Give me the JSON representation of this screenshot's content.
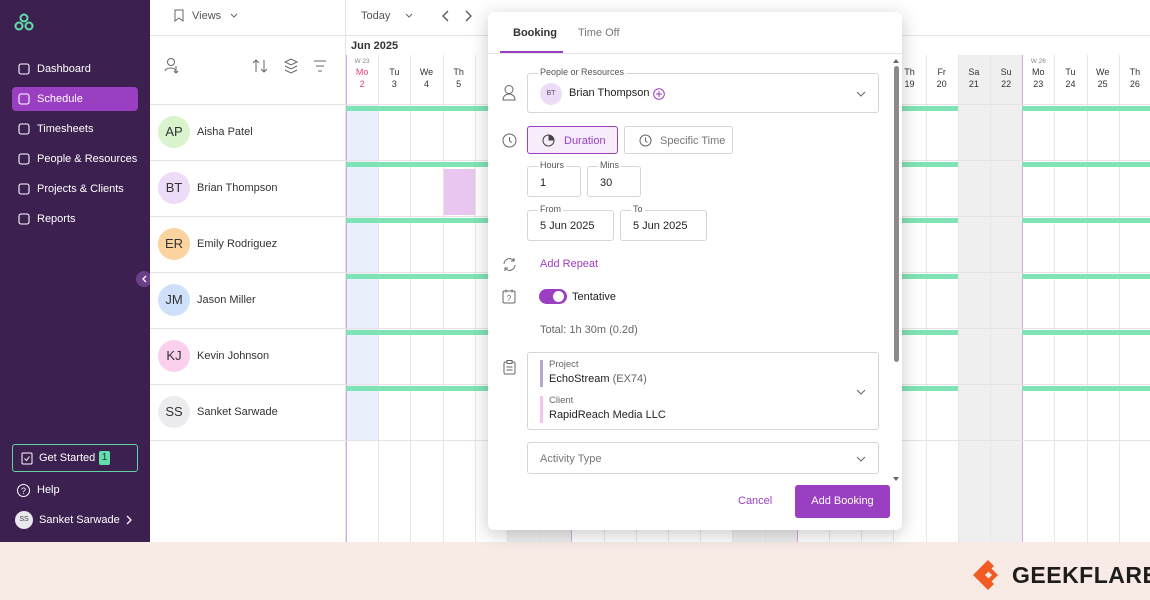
{
  "sidebar": {
    "nav": [
      "Dashboard",
      "Schedule",
      "Timesheets",
      "People & Resources",
      "Projects & Clients",
      "Reports"
    ],
    "get_started": {
      "label": "Get Started",
      "badge": "1"
    },
    "help": "Help",
    "user": {
      "initials": "SS",
      "name": "Sanket Sarwade"
    }
  },
  "toolbar": {
    "views": "Views",
    "today": "Today"
  },
  "calendar": {
    "month": "Jun 2025",
    "days": [
      {
        "name": "Mo",
        "date": 2,
        "week": "W 23"
      },
      {
        "name": "Tu",
        "date": 3
      },
      {
        "name": "We",
        "date": 4
      },
      {
        "name": "Th",
        "date": 5
      },
      {
        "name": "Th",
        "date": 19
      },
      {
        "name": "Fr",
        "date": 20
      },
      {
        "name": "Sa",
        "date": 21
      },
      {
        "name": "Su",
        "date": 22
      },
      {
        "name": "Mo",
        "date": 23,
        "week": "W 26"
      },
      {
        "name": "Tu",
        "date": 24
      },
      {
        "name": "We",
        "date": 25
      },
      {
        "name": "Th",
        "date": 26
      }
    ],
    "people": [
      {
        "initials": "AP",
        "name": "Aisha Patel",
        "color": "#d9f4cc"
      },
      {
        "initials": "BT",
        "name": "Brian Thompson",
        "color": "#ecdcf7"
      },
      {
        "initials": "ER",
        "name": "Emily Rodriguez",
        "color": "#fbd39f"
      },
      {
        "initials": "JM",
        "name": "Jason Miller",
        "color": "#cfe0fb"
      },
      {
        "initials": "KJ",
        "name": "Kevin Johnson",
        "color": "#fbd0ec"
      },
      {
        "initials": "SS",
        "name": "Sanket Sarwade",
        "color": "#ececef"
      }
    ]
  },
  "dialog": {
    "tabs": [
      "Booking",
      "Time Off"
    ],
    "people_label": "People or Resources",
    "person": {
      "initials": "BT",
      "name": "Brian Thompson"
    },
    "modes": [
      "Duration",
      "Specific Time"
    ],
    "hours": {
      "label": "Hours",
      "value": "1"
    },
    "mins": {
      "label": "Mins",
      "value": "30"
    },
    "from": {
      "label": "From",
      "value": "5 Jun 2025"
    },
    "to": {
      "label": "To",
      "value": "5 Jun 2025"
    },
    "repeat": "Add Repeat",
    "tentative": "Tentative",
    "total": "Total: 1h 30m (0.2d)",
    "project": {
      "label": "Project",
      "name": "EchoStream",
      "code": "(EX74)"
    },
    "client": {
      "label": "Client",
      "name": "RapidReach Media LLC"
    },
    "activity_type": "Activity Type",
    "cancel": "Cancel",
    "submit": "Add Booking"
  },
  "brand": "GEEKFLARE"
}
